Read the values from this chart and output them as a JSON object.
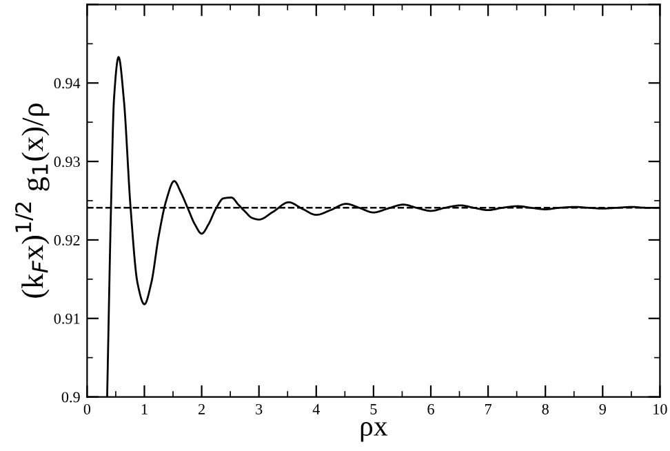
{
  "chart_data": {
    "type": "line",
    "xlabel": "ρx",
    "ylabel": "(k$_{F}$x)$^{1/2}$ g$_{1}$(x)/ρ",
    "xlim": [
      0,
      10
    ],
    "ylim": [
      0.9,
      0.95
    ],
    "xticks": [
      0,
      1,
      2,
      3,
      4,
      5,
      6,
      7,
      8,
      9,
      10
    ],
    "yticks": [
      {
        "value": 0.9,
        "label": "0.9"
      },
      0.91,
      0.92,
      0.93,
      0.94,
      {
        "value": 0.95,
        "label": null
      }
    ],
    "grid": false,
    "legend": false,
    "marker": "none",
    "line_style": "solid",
    "series": [
      {
        "color": "#000000",
        "x": [
          0.35,
          0.42,
          0.47,
          0.55,
          0.64,
          0.76,
          0.88,
          1.0,
          1.12,
          1.25,
          1.38,
          1.52,
          1.64,
          1.76,
          1.88,
          2.0,
          2.12,
          2.25,
          2.38,
          2.52,
          2.64,
          2.76,
          2.88,
          3.0,
          3.25,
          3.52,
          3.75,
          4.0,
          4.25,
          4.52,
          4.75,
          5.0,
          5.25,
          5.52,
          5.75,
          6.0,
          6.25,
          6.52,
          6.75,
          7.0,
          7.25,
          7.52,
          7.75,
          8.0,
          8.25,
          8.52,
          8.75,
          9.0,
          9.25,
          9.52,
          9.75,
          10.0
        ],
        "values": [
          0.9,
          0.925,
          0.938,
          0.9433,
          0.938,
          0.924,
          0.9145,
          0.9118,
          0.9145,
          0.9205,
          0.925,
          0.9275,
          0.926,
          0.924,
          0.922,
          0.9208,
          0.922,
          0.924,
          0.9253,
          0.9254,
          0.9245,
          0.9236,
          0.9228,
          0.9226,
          0.9236,
          0.9248,
          0.924,
          0.9232,
          0.9238,
          0.9246,
          0.9241,
          0.9235,
          0.924,
          0.9245,
          0.9241,
          0.9237,
          0.9241,
          0.9244,
          0.9241,
          0.9238,
          0.9241,
          0.9243,
          0.9241,
          0.9239,
          0.9241,
          0.9242,
          0.9241,
          0.924,
          0.9241,
          0.9242,
          0.9241,
          0.9241
        ]
      }
    ],
    "ref_lines": [
      {
        "axis": "y",
        "value": 0.9241,
        "color": "#000000",
        "line_style": "dashed"
      }
    ]
  }
}
